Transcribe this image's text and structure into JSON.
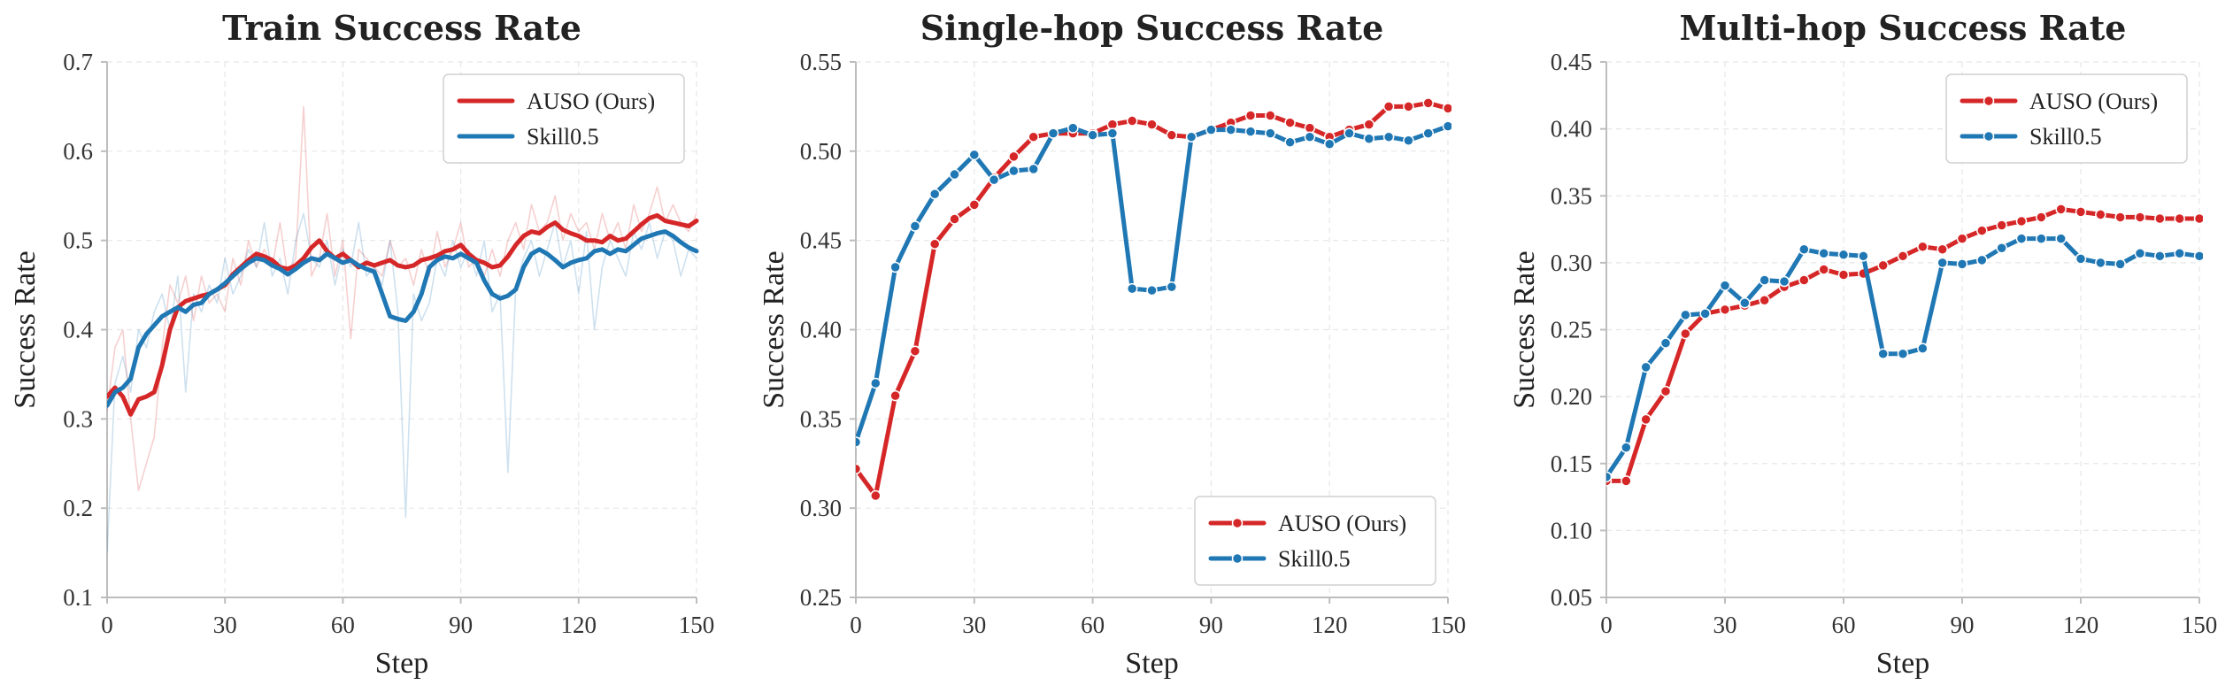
{
  "colors": {
    "auso": "#d62728",
    "skill": "#1f77b4"
  },
  "chart_data": [
    {
      "type": "line",
      "title": "Train Success Rate",
      "xlabel": "Step",
      "ylabel": "Success Rate",
      "xlim": [
        0,
        150
      ],
      "ylim": [
        0.1,
        0.7
      ],
      "xticks": [
        0,
        30,
        60,
        90,
        120,
        150
      ],
      "yticks": [
        0.1,
        0.2,
        0.3,
        0.4,
        0.5,
        0.6,
        0.7
      ],
      "ytick_labels": [
        "0.1",
        "0.2",
        "0.3",
        "0.4",
        "0.5",
        "0.6",
        "0.7"
      ],
      "grid": true,
      "markers": false,
      "legend_position": "top-right",
      "raw_series": [
        {
          "name": "AUSO (Ours)",
          "color": "#d62728",
          "x": [
            0,
            2,
            4,
            6,
            8,
            10,
            12,
            14,
            16,
            18,
            20,
            22,
            24,
            26,
            28,
            30,
            32,
            34,
            36,
            38,
            40,
            42,
            44,
            46,
            48,
            50,
            52,
            54,
            56,
            58,
            60,
            62,
            64,
            66,
            68,
            70,
            72,
            74,
            76,
            78,
            80,
            82,
            84,
            86,
            88,
            90,
            92,
            94,
            96,
            98,
            100,
            102,
            104,
            106,
            108,
            110,
            112,
            114,
            116,
            118,
            120,
            122,
            124,
            126,
            128,
            130,
            132,
            134,
            136,
            138,
            140,
            142,
            144,
            146,
            148,
            150
          ],
          "values": [
            0.31,
            0.38,
            0.4,
            0.3,
            0.22,
            0.25,
            0.28,
            0.38,
            0.45,
            0.43,
            0.46,
            0.41,
            0.46,
            0.43,
            0.44,
            0.42,
            0.48,
            0.45,
            0.5,
            0.47,
            0.49,
            0.47,
            0.52,
            0.46,
            0.48,
            0.65,
            0.46,
            0.48,
            0.53,
            0.46,
            0.5,
            0.39,
            0.49,
            0.48,
            0.47,
            0.46,
            0.5,
            0.47,
            0.48,
            0.45,
            0.49,
            0.46,
            0.51,
            0.47,
            0.49,
            0.52,
            0.47,
            0.48,
            0.46,
            0.49,
            0.46,
            0.5,
            0.52,
            0.49,
            0.54,
            0.51,
            0.52,
            0.55,
            0.5,
            0.53,
            0.51,
            0.52,
            0.49,
            0.53,
            0.5,
            0.52,
            0.49,
            0.54,
            0.51,
            0.53,
            0.56,
            0.52,
            0.54,
            0.52,
            0.51,
            0.53
          ]
        },
        {
          "name": "Skill0.5",
          "color": "#1f77b4",
          "x": [
            0,
            2,
            4,
            6,
            8,
            10,
            12,
            14,
            16,
            18,
            20,
            22,
            24,
            26,
            28,
            30,
            32,
            34,
            36,
            38,
            40,
            42,
            44,
            46,
            48,
            50,
            52,
            54,
            56,
            58,
            60,
            62,
            64,
            66,
            68,
            70,
            72,
            74,
            76,
            78,
            80,
            82,
            84,
            86,
            88,
            90,
            92,
            94,
            96,
            98,
            100,
            102,
            104,
            106,
            108,
            110,
            112,
            114,
            116,
            118,
            120,
            122,
            124,
            126,
            128,
            130,
            132,
            134,
            136,
            138,
            140,
            142,
            144,
            146,
            148,
            150
          ],
          "values": [
            0.15,
            0.34,
            0.37,
            0.33,
            0.4,
            0.38,
            0.42,
            0.44,
            0.4,
            0.46,
            0.33,
            0.44,
            0.42,
            0.45,
            0.43,
            0.48,
            0.44,
            0.46,
            0.49,
            0.47,
            0.52,
            0.46,
            0.48,
            0.44,
            0.5,
            0.53,
            0.48,
            0.47,
            0.5,
            0.45,
            0.49,
            0.47,
            0.52,
            0.46,
            0.47,
            0.45,
            0.5,
            0.42,
            0.19,
            0.44,
            0.41,
            0.43,
            0.48,
            0.46,
            0.5,
            0.47,
            0.49,
            0.46,
            0.5,
            0.42,
            0.44,
            0.24,
            0.45,
            0.48,
            0.5,
            0.46,
            0.49,
            0.52,
            0.47,
            0.5,
            0.44,
            0.51,
            0.4,
            0.47,
            0.5,
            0.48,
            0.46,
            0.51,
            0.49,
            0.52,
            0.48,
            0.51,
            0.5,
            0.46,
            0.49,
            0.48
          ]
        }
      ],
      "series": [
        {
          "name": "AUSO (Ours)",
          "color": "#d62728",
          "x": [
            0,
            2,
            4,
            6,
            8,
            10,
            12,
            14,
            16,
            18,
            20,
            22,
            24,
            26,
            28,
            30,
            32,
            34,
            36,
            38,
            40,
            42,
            44,
            46,
            48,
            50,
            52,
            54,
            56,
            58,
            60,
            62,
            64,
            66,
            68,
            70,
            72,
            74,
            76,
            78,
            80,
            82,
            84,
            86,
            88,
            90,
            92,
            94,
            96,
            98,
            100,
            102,
            104,
            106,
            108,
            110,
            112,
            114,
            116,
            118,
            120,
            122,
            124,
            126,
            128,
            130,
            132,
            134,
            136,
            138,
            140,
            142,
            144,
            146,
            148,
            150
          ],
          "values": [
            0.325,
            0.335,
            0.325,
            0.305,
            0.322,
            0.325,
            0.33,
            0.36,
            0.4,
            0.425,
            0.432,
            0.435,
            0.438,
            0.44,
            0.445,
            0.45,
            0.462,
            0.47,
            0.478,
            0.485,
            0.482,
            0.478,
            0.47,
            0.468,
            0.472,
            0.48,
            0.492,
            0.5,
            0.488,
            0.48,
            0.485,
            0.478,
            0.47,
            0.475,
            0.472,
            0.475,
            0.478,
            0.472,
            0.47,
            0.472,
            0.478,
            0.48,
            0.483,
            0.488,
            0.49,
            0.495,
            0.485,
            0.478,
            0.475,
            0.47,
            0.472,
            0.482,
            0.495,
            0.505,
            0.51,
            0.508,
            0.515,
            0.52,
            0.512,
            0.508,
            0.505,
            0.5,
            0.5,
            0.498,
            0.505,
            0.5,
            0.502,
            0.51,
            0.518,
            0.525,
            0.528,
            0.522,
            0.52,
            0.518,
            0.516,
            0.522
          ]
        },
        {
          "name": "Skill0.5",
          "color": "#1f77b4",
          "x": [
            0,
            2,
            4,
            6,
            8,
            10,
            12,
            14,
            16,
            18,
            20,
            22,
            24,
            26,
            28,
            30,
            32,
            34,
            36,
            38,
            40,
            42,
            44,
            46,
            48,
            50,
            52,
            54,
            56,
            58,
            60,
            62,
            64,
            66,
            68,
            70,
            72,
            74,
            76,
            78,
            80,
            82,
            84,
            86,
            88,
            90,
            92,
            94,
            96,
            98,
            100,
            102,
            104,
            106,
            108,
            110,
            112,
            114,
            116,
            118,
            120,
            122,
            124,
            126,
            128,
            130,
            132,
            134,
            136,
            138,
            140,
            142,
            144,
            146,
            148,
            150
          ],
          "values": [
            0.315,
            0.33,
            0.335,
            0.345,
            0.38,
            0.395,
            0.405,
            0.415,
            0.42,
            0.425,
            0.42,
            0.428,
            0.43,
            0.44,
            0.445,
            0.452,
            0.46,
            0.468,
            0.475,
            0.48,
            0.478,
            0.472,
            0.468,
            0.462,
            0.468,
            0.475,
            0.48,
            0.478,
            0.485,
            0.48,
            0.475,
            0.478,
            0.472,
            0.468,
            0.465,
            0.44,
            0.415,
            0.412,
            0.41,
            0.42,
            0.44,
            0.47,
            0.478,
            0.482,
            0.48,
            0.485,
            0.48,
            0.475,
            0.455,
            0.44,
            0.435,
            0.438,
            0.445,
            0.47,
            0.485,
            0.49,
            0.485,
            0.478,
            0.47,
            0.475,
            0.478,
            0.48,
            0.488,
            0.49,
            0.485,
            0.49,
            0.488,
            0.495,
            0.502,
            0.505,
            0.508,
            0.51,
            0.505,
            0.498,
            0.492,
            0.488
          ]
        }
      ]
    },
    {
      "type": "line",
      "title": "Single-hop Success Rate",
      "xlabel": "Step",
      "ylabel": "Success Rate",
      "xlim": [
        0,
        150
      ],
      "ylim": [
        0.25,
        0.55
      ],
      "xticks": [
        0,
        30,
        60,
        90,
        120,
        150
      ],
      "yticks": [
        0.25,
        0.3,
        0.35,
        0.4,
        0.45,
        0.5,
        0.55
      ],
      "ytick_labels": [
        "0.25",
        "0.30",
        "0.35",
        "0.40",
        "0.45",
        "0.50",
        "0.55"
      ],
      "grid": true,
      "markers": true,
      "legend_position": "bottom-right",
      "series": [
        {
          "name": "AUSO (Ours)",
          "color": "#d62728",
          "x": [
            0,
            5,
            10,
            15,
            20,
            25,
            30,
            35,
            40,
            45,
            50,
            55,
            60,
            65,
            70,
            75,
            80,
            85,
            90,
            95,
            100,
            105,
            110,
            115,
            120,
            125,
            130,
            135,
            140,
            145,
            150
          ],
          "values": [
            0.322,
            0.307,
            0.363,
            0.388,
            0.448,
            0.462,
            0.47,
            0.485,
            0.497,
            0.508,
            0.51,
            0.51,
            0.51,
            0.515,
            0.517,
            0.515,
            0.509,
            0.508,
            0.512,
            0.516,
            0.52,
            0.52,
            0.516,
            0.513,
            0.508,
            0.512,
            0.515,
            0.525,
            0.525,
            0.527,
            0.524
          ]
        },
        {
          "name": "Skill0.5",
          "color": "#1f77b4",
          "x": [
            0,
            5,
            10,
            15,
            20,
            25,
            30,
            35,
            40,
            45,
            50,
            55,
            60,
            65,
            70,
            75,
            80,
            85,
            90,
            95,
            100,
            105,
            110,
            115,
            120,
            125,
            130,
            135,
            140,
            145,
            150
          ],
          "values": [
            0.337,
            0.37,
            0.435,
            0.458,
            0.476,
            0.487,
            0.498,
            0.484,
            0.489,
            0.49,
            0.51,
            0.513,
            0.509,
            0.51,
            0.423,
            0.422,
            0.424,
            0.508,
            0.512,
            0.512,
            0.511,
            0.51,
            0.505,
            0.508,
            0.504,
            0.51,
            0.507,
            0.508,
            0.506,
            0.51,
            0.514
          ]
        }
      ]
    },
    {
      "type": "line",
      "title": "Multi-hop Success Rate",
      "xlabel": "Step",
      "ylabel": "Success Rate",
      "xlim": [
        0,
        150
      ],
      "ylim": [
        0.05,
        0.45
      ],
      "xticks": [
        0,
        30,
        60,
        90,
        120,
        150
      ],
      "yticks": [
        0.05,
        0.1,
        0.15,
        0.2,
        0.25,
        0.3,
        0.35,
        0.4,
        0.45
      ],
      "ytick_labels": [
        "0.05",
        "0.10",
        "0.15",
        "0.20",
        "0.25",
        "0.30",
        "0.35",
        "0.40",
        "0.45"
      ],
      "grid": true,
      "markers": true,
      "legend_position": "top-right",
      "series": [
        {
          "name": "AUSO (Ours)",
          "color": "#d62728",
          "x": [
            0,
            5,
            10,
            15,
            20,
            25,
            30,
            35,
            40,
            45,
            50,
            55,
            60,
            65,
            70,
            75,
            80,
            85,
            90,
            95,
            100,
            105,
            110,
            115,
            120,
            125,
            130,
            135,
            140,
            145,
            150
          ],
          "values": [
            0.137,
            0.137,
            0.183,
            0.204,
            0.247,
            0.262,
            0.265,
            0.268,
            0.272,
            0.282,
            0.287,
            0.295,
            0.291,
            0.292,
            0.298,
            0.305,
            0.312,
            0.31,
            0.318,
            0.324,
            0.328,
            0.331,
            0.334,
            0.34,
            0.338,
            0.336,
            0.334,
            0.334,
            0.333,
            0.333,
            0.333
          ]
        },
        {
          "name": "Skill0.5",
          "color": "#1f77b4",
          "x": [
            0,
            5,
            10,
            15,
            20,
            25,
            30,
            35,
            40,
            45,
            50,
            55,
            60,
            65,
            70,
            75,
            80,
            85,
            90,
            95,
            100,
            105,
            110,
            115,
            120,
            125,
            130,
            135,
            140,
            145,
            150
          ],
          "values": [
            0.14,
            0.162,
            0.222,
            0.24,
            0.261,
            0.262,
            0.283,
            0.27,
            0.287,
            0.286,
            0.31,
            0.307,
            0.306,
            0.305,
            0.232,
            0.232,
            0.236,
            0.3,
            0.299,
            0.302,
            0.311,
            0.318,
            0.318,
            0.318,
            0.303,
            0.3,
            0.299,
            0.307,
            0.305,
            0.307,
            0.305
          ]
        }
      ]
    }
  ]
}
